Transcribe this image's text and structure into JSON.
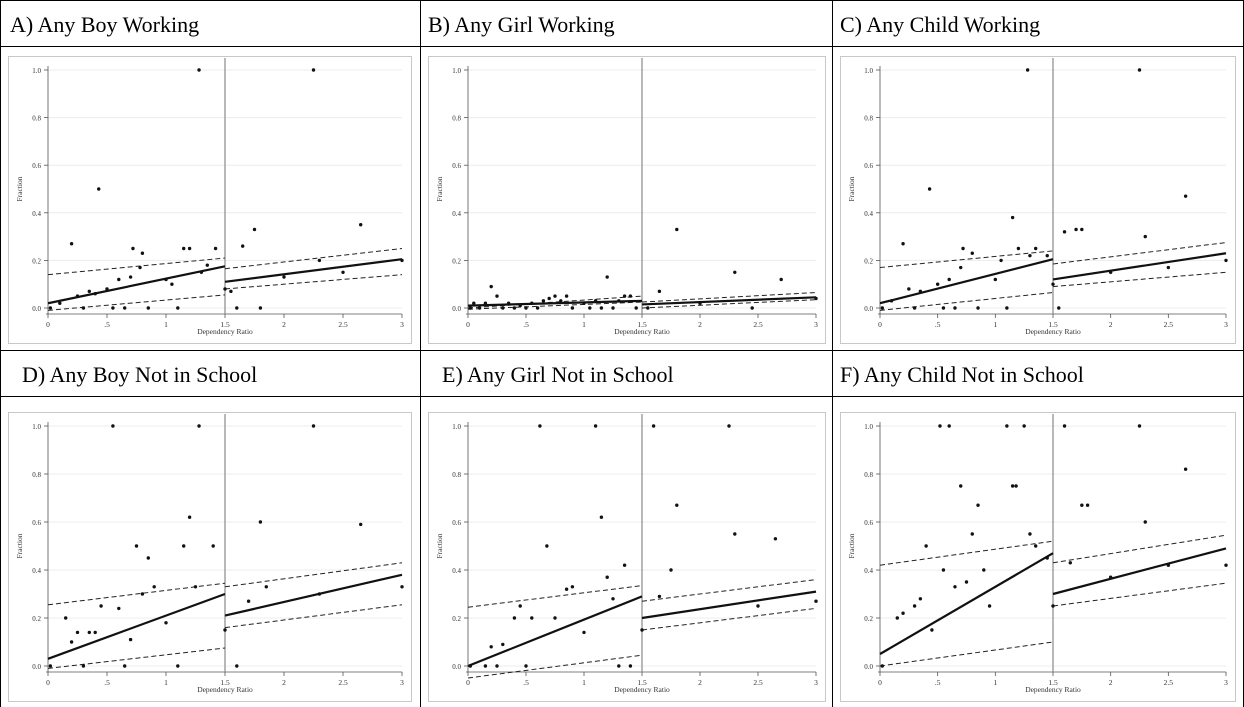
{
  "panels": [
    {
      "id": "A",
      "title": "A)  Any Boy Working"
    },
    {
      "id": "B",
      "title": "B)  Any Girl Working"
    },
    {
      "id": "C",
      "title": "C)  Any Child Working"
    },
    {
      "id": "D",
      "title": "D)  Any Boy Not in School"
    },
    {
      "id": "E",
      "title": "E)  Any Girl Not in School"
    },
    {
      "id": "F",
      "title": "F)  Any Child Not in School"
    }
  ],
  "chart_data": [
    {
      "type": "scatter",
      "panel": "A",
      "title": "Any Boy Working",
      "xlabel": "Dependency Ratio",
      "ylabel": "Fraction",
      "xlim": [
        0,
        3
      ],
      "ylim": [
        0,
        1
      ],
      "xticks": [
        0,
        0.5,
        1,
        1.5,
        2,
        2.5,
        3
      ],
      "xtick_labels": [
        "0",
        ".5",
        "1",
        "1.5",
        "2",
        "2.5",
        "3"
      ],
      "yticks": [
        0,
        0.2,
        0.4,
        0.6,
        0.8,
        1
      ],
      "ytick_labels": [
        "0.0",
        "0.2",
        "0.4",
        "0.6",
        "0.8",
        "1.0"
      ],
      "cutoff": 1.5,
      "points": [
        [
          0.02,
          0.0
        ],
        [
          0.1,
          0.02
        ],
        [
          0.2,
          0.27
        ],
        [
          0.25,
          0.05
        ],
        [
          0.3,
          0.0
        ],
        [
          0.35,
          0.07
        ],
        [
          0.4,
          0.06
        ],
        [
          0.43,
          0.5
        ],
        [
          0.5,
          0.08
        ],
        [
          0.55,
          0.0
        ],
        [
          0.6,
          0.12
        ],
        [
          0.65,
          0.0
        ],
        [
          0.7,
          0.13
        ],
        [
          0.72,
          0.25
        ],
        [
          0.78,
          0.17
        ],
        [
          0.8,
          0.23
        ],
        [
          0.85,
          0.0
        ],
        [
          1.0,
          0.12
        ],
        [
          1.05,
          0.1
        ],
        [
          1.1,
          0.0
        ],
        [
          1.15,
          0.25
        ],
        [
          1.2,
          0.25
        ],
        [
          1.28,
          1.0
        ],
        [
          1.3,
          0.15
        ],
        [
          1.35,
          0.18
        ],
        [
          1.42,
          0.25
        ],
        [
          1.5,
          0.08
        ],
        [
          1.55,
          0.07
        ],
        [
          1.6,
          0.0
        ],
        [
          1.65,
          0.26
        ],
        [
          1.75,
          0.33
        ],
        [
          1.8,
          0.0
        ],
        [
          2.0,
          0.13
        ],
        [
          2.25,
          1.0
        ],
        [
          2.3,
          0.2
        ],
        [
          2.5,
          0.15
        ],
        [
          2.65,
          0.35
        ],
        [
          3.0,
          0.2
        ]
      ],
      "fit_left": [
        0.02,
        0.175
      ],
      "ci_left": [
        [
          -0.01,
          0.055
        ],
        [
          0.14,
          0.21
        ]
      ],
      "fit_right": [
        0.11,
        0.205
      ],
      "ci_right": [
        [
          0.08,
          0.14
        ],
        [
          0.165,
          0.25
        ]
      ]
    },
    {
      "type": "scatter",
      "panel": "B",
      "title": "Any Girl Working",
      "xlabel": "Dependency Ratio",
      "ylabel": "Fraction",
      "xlim": [
        0,
        3
      ],
      "ylim": [
        0,
        1
      ],
      "xticks": [
        0,
        0.5,
        1,
        1.5,
        2,
        2.5,
        3
      ],
      "xtick_labels": [
        "0",
        ".5",
        "1",
        "1.5",
        "2",
        "2.5",
        "3"
      ],
      "yticks": [
        0,
        0.2,
        0.4,
        0.6,
        0.8,
        1
      ],
      "ytick_labels": [
        "0.0",
        "0.2",
        "0.4",
        "0.6",
        "0.8",
        "1.0"
      ],
      "cutoff": 1.5,
      "points": [
        [
          0.02,
          0.0
        ],
        [
          0.05,
          0.02
        ],
        [
          0.1,
          0.0
        ],
        [
          0.15,
          0.02
        ],
        [
          0.2,
          0.09
        ],
        [
          0.25,
          0.05
        ],
        [
          0.3,
          0.0
        ],
        [
          0.35,
          0.02
        ],
        [
          0.4,
          0.0
        ],
        [
          0.45,
          0.01
        ],
        [
          0.5,
          0.0
        ],
        [
          0.55,
          0.02
        ],
        [
          0.6,
          0.0
        ],
        [
          0.65,
          0.03
        ],
        [
          0.7,
          0.04
        ],
        [
          0.75,
          0.05
        ],
        [
          0.8,
          0.03
        ],
        [
          0.85,
          0.05
        ],
        [
          0.9,
          0.0
        ],
        [
          1.0,
          0.02
        ],
        [
          1.05,
          0.0
        ],
        [
          1.1,
          0.03
        ],
        [
          1.15,
          0.0
        ],
        [
          1.2,
          0.13
        ],
        [
          1.25,
          0.0
        ],
        [
          1.3,
          0.03
        ],
        [
          1.35,
          0.05
        ],
        [
          1.4,
          0.05
        ],
        [
          1.45,
          0.0
        ],
        [
          1.55,
          0.0
        ],
        [
          1.65,
          0.07
        ],
        [
          1.8,
          0.33
        ],
        [
          2.0,
          0.02
        ],
        [
          2.3,
          0.15
        ],
        [
          2.45,
          0.0
        ],
        [
          2.7,
          0.12
        ],
        [
          3.0,
          0.04
        ]
      ],
      "fit_left": [
        0.01,
        0.03
      ],
      "ci_left": [
        [
          -0.005,
          0.025
        ],
        [
          0.0,
          0.05
        ]
      ],
      "fit_right": [
        0.015,
        0.045
      ],
      "ci_right": [
        [
          0.0,
          0.035
        ],
        [
          0.025,
          0.065
        ]
      ]
    },
    {
      "type": "scatter",
      "panel": "C",
      "title": "Any Child Working",
      "xlabel": "Dependency Ratio",
      "ylabel": "Fraction",
      "xlim": [
        0,
        3
      ],
      "ylim": [
        0,
        1
      ],
      "xticks": [
        0,
        0.5,
        1,
        1.5,
        2,
        2.5,
        3
      ],
      "xtick_labels": [
        "0",
        ".5",
        "1",
        "1.5",
        "2",
        "2.5",
        "3"
      ],
      "yticks": [
        0,
        0.2,
        0.4,
        0.6,
        0.8,
        1
      ],
      "ytick_labels": [
        "0.0",
        "0.2",
        "0.4",
        "0.6",
        "0.8",
        "1.0"
      ],
      "cutoff": 1.5,
      "points": [
        [
          0.02,
          0.0
        ],
        [
          0.1,
          0.03
        ],
        [
          0.2,
          0.27
        ],
        [
          0.25,
          0.08
        ],
        [
          0.3,
          0.0
        ],
        [
          0.35,
          0.07
        ],
        [
          0.43,
          0.5
        ],
        [
          0.5,
          0.1
        ],
        [
          0.55,
          0.0
        ],
        [
          0.6,
          0.12
        ],
        [
          0.65,
          0.0
        ],
        [
          0.7,
          0.17
        ],
        [
          0.72,
          0.25
        ],
        [
          0.8,
          0.23
        ],
        [
          0.85,
          0.0
        ],
        [
          1.0,
          0.12
        ],
        [
          1.05,
          0.2
        ],
        [
          1.1,
          0.0
        ],
        [
          1.15,
          0.38
        ],
        [
          1.2,
          0.25
        ],
        [
          1.28,
          1.0
        ],
        [
          1.3,
          0.22
        ],
        [
          1.35,
          0.25
        ],
        [
          1.45,
          0.22
        ],
        [
          1.5,
          0.1
        ],
        [
          1.55,
          0.0
        ],
        [
          1.6,
          0.32
        ],
        [
          1.7,
          0.33
        ],
        [
          1.75,
          0.33
        ],
        [
          2.0,
          0.15
        ],
        [
          2.25,
          1.0
        ],
        [
          2.3,
          0.3
        ],
        [
          2.5,
          0.17
        ],
        [
          2.65,
          0.47
        ],
        [
          3.0,
          0.2
        ]
      ],
      "fit_left": [
        0.02,
        0.205
      ],
      "ci_left": [
        [
          -0.01,
          0.065
        ],
        [
          0.17,
          0.24
        ]
      ],
      "fit_right": [
        0.12,
        0.23
      ],
      "ci_right": [
        [
          0.09,
          0.15
        ],
        [
          0.185,
          0.275
        ]
      ]
    },
    {
      "type": "scatter",
      "panel": "D",
      "title": "Any Boy Not in School",
      "xlabel": "Dependency Ratio",
      "ylabel": "Fraction",
      "xlim": [
        0,
        3
      ],
      "ylim": [
        0,
        1
      ],
      "xticks": [
        0,
        0.5,
        1,
        1.5,
        2,
        2.5,
        3
      ],
      "xtick_labels": [
        "0",
        ".5",
        "1",
        "1.5",
        "2",
        "2.5",
        "3"
      ],
      "yticks": [
        0,
        0.2,
        0.4,
        0.6,
        0.8,
        1
      ],
      "ytick_labels": [
        "0.0",
        "0.2",
        "0.4",
        "0.6",
        "0.8",
        "1.0"
      ],
      "cutoff": 1.5,
      "points": [
        [
          0.02,
          0.0
        ],
        [
          0.15,
          0.2
        ],
        [
          0.2,
          0.1
        ],
        [
          0.25,
          0.14
        ],
        [
          0.3,
          0.0
        ],
        [
          0.35,
          0.14
        ],
        [
          0.4,
          0.14
        ],
        [
          0.45,
          0.25
        ],
        [
          0.55,
          1.0
        ],
        [
          0.6,
          0.24
        ],
        [
          0.65,
          0.0
        ],
        [
          0.7,
          0.11
        ],
        [
          0.75,
          0.5
        ],
        [
          0.8,
          0.3
        ],
        [
          0.85,
          0.45
        ],
        [
          0.9,
          0.33
        ],
        [
          1.0,
          0.18
        ],
        [
          1.1,
          0.0
        ],
        [
          1.15,
          0.5
        ],
        [
          1.2,
          0.62
        ],
        [
          1.25,
          0.33
        ],
        [
          1.28,
          1.0
        ],
        [
          1.4,
          0.5
        ],
        [
          1.5,
          0.15
        ],
        [
          1.6,
          0.0
        ],
        [
          1.7,
          0.27
        ],
        [
          1.8,
          0.6
        ],
        [
          1.85,
          0.33
        ],
        [
          2.25,
          1.0
        ],
        [
          2.3,
          0.3
        ],
        [
          2.65,
          0.59
        ],
        [
          3.0,
          0.33
        ]
      ],
      "fit_left": [
        0.03,
        0.3
      ],
      "ci_left": [
        [
          -0.01,
          0.075
        ],
        [
          0.255,
          0.345
        ]
      ],
      "fit_right": [
        0.21,
        0.38
      ],
      "ci_right": [
        [
          0.16,
          0.255
        ],
        [
          0.33,
          0.43
        ]
      ]
    },
    {
      "type": "scatter",
      "panel": "E",
      "title": "Any Girl Not in School",
      "xlabel": "Dependency Ratio",
      "ylabel": "Fraction",
      "xlim": [
        0,
        3
      ],
      "ylim": [
        0,
        1
      ],
      "xticks": [
        0,
        0.5,
        1,
        1.5,
        2,
        2.5,
        3
      ],
      "xtick_labels": [
        "0",
        ".5",
        "1",
        "1.5",
        "2",
        "2.5",
        "3"
      ],
      "yticks": [
        0,
        0.2,
        0.4,
        0.6,
        0.8,
        1
      ],
      "ytick_labels": [
        "0.0",
        "0.2",
        "0.4",
        "0.6",
        "0.8",
        "1.0"
      ],
      "cutoff": 1.5,
      "points": [
        [
          0.02,
          0.0
        ],
        [
          0.15,
          0.0
        ],
        [
          0.2,
          0.08
        ],
        [
          0.25,
          0.0
        ],
        [
          0.3,
          0.09
        ],
        [
          0.4,
          0.2
        ],
        [
          0.45,
          0.25
        ],
        [
          0.5,
          0.0
        ],
        [
          0.55,
          0.2
        ],
        [
          0.62,
          1.0
        ],
        [
          0.68,
          0.5
        ],
        [
          0.75,
          0.2
        ],
        [
          0.85,
          0.32
        ],
        [
          0.9,
          0.33
        ],
        [
          1.0,
          0.14
        ],
        [
          1.1,
          1.0
        ],
        [
          1.15,
          0.62
        ],
        [
          1.2,
          0.37
        ],
        [
          1.25,
          0.28
        ],
        [
          1.3,
          0.0
        ],
        [
          1.35,
          0.42
        ],
        [
          1.4,
          0.0
        ],
        [
          1.5,
          0.15
        ],
        [
          1.6,
          1.0
        ],
        [
          1.65,
          0.29
        ],
        [
          1.75,
          0.4
        ],
        [
          1.8,
          0.67
        ],
        [
          2.25,
          1.0
        ],
        [
          2.3,
          0.55
        ],
        [
          2.5,
          0.25
        ],
        [
          2.65,
          0.53
        ],
        [
          3.0,
          0.27
        ]
      ],
      "fit_left": [
        0.0,
        0.29
      ],
      "ci_left": [
        [
          -0.05,
          0.045
        ],
        [
          0.245,
          0.335
        ]
      ],
      "fit_right": [
        0.2,
        0.31
      ],
      "ci_right": [
        [
          0.15,
          0.24
        ],
        [
          0.27,
          0.36
        ]
      ]
    },
    {
      "type": "scatter",
      "panel": "F",
      "title": "Any Child Not in School",
      "xlabel": "Dependency Ratio",
      "ylabel": "Fraction",
      "xlim": [
        0,
        3
      ],
      "ylim": [
        0,
        1
      ],
      "xticks": [
        0,
        0.5,
        1,
        1.5,
        2,
        2.5,
        3
      ],
      "xtick_labels": [
        "0",
        ".5",
        "1",
        "1.5",
        "2",
        "2.5",
        "3"
      ],
      "yticks": [
        0,
        0.2,
        0.4,
        0.6,
        0.8,
        1
      ],
      "ytick_labels": [
        "0.0",
        "0.2",
        "0.4",
        "0.6",
        "0.8",
        "1.0"
      ],
      "cutoff": 1.5,
      "points": [
        [
          0.02,
          0.0
        ],
        [
          0.15,
          0.2
        ],
        [
          0.2,
          0.22
        ],
        [
          0.3,
          0.25
        ],
        [
          0.35,
          0.28
        ],
        [
          0.4,
          0.5
        ],
        [
          0.45,
          0.15
        ],
        [
          0.52,
          1.0
        ],
        [
          0.6,
          1.0
        ],
        [
          0.55,
          0.4
        ],
        [
          0.65,
          0.33
        ],
        [
          0.7,
          0.75
        ],
        [
          0.75,
          0.35
        ],
        [
          0.8,
          0.55
        ],
        [
          0.85,
          0.67
        ],
        [
          0.9,
          0.4
        ],
        [
          0.95,
          0.25
        ],
        [
          1.1,
          1.0
        ],
        [
          1.15,
          0.75
        ],
        [
          1.18,
          0.75
        ],
        [
          1.25,
          1.0
        ],
        [
          1.3,
          0.55
        ],
        [
          1.35,
          0.5
        ],
        [
          1.45,
          0.45
        ],
        [
          1.5,
          0.25
        ],
        [
          1.6,
          1.0
        ],
        [
          1.65,
          0.43
        ],
        [
          1.75,
          0.67
        ],
        [
          1.8,
          0.67
        ],
        [
          2.0,
          0.37
        ],
        [
          2.25,
          1.0
        ],
        [
          2.3,
          0.6
        ],
        [
          2.5,
          0.42
        ],
        [
          2.65,
          0.82
        ],
        [
          3.0,
          0.42
        ]
      ],
      "fit_left": [
        0.05,
        0.47
      ],
      "ci_left": [
        [
          0.0,
          0.1
        ],
        [
          0.42,
          0.52
        ]
      ],
      "fit_right": [
        0.3,
        0.49
      ],
      "ci_right": [
        [
          0.25,
          0.345
        ],
        [
          0.43,
          0.545
        ]
      ]
    }
  ]
}
